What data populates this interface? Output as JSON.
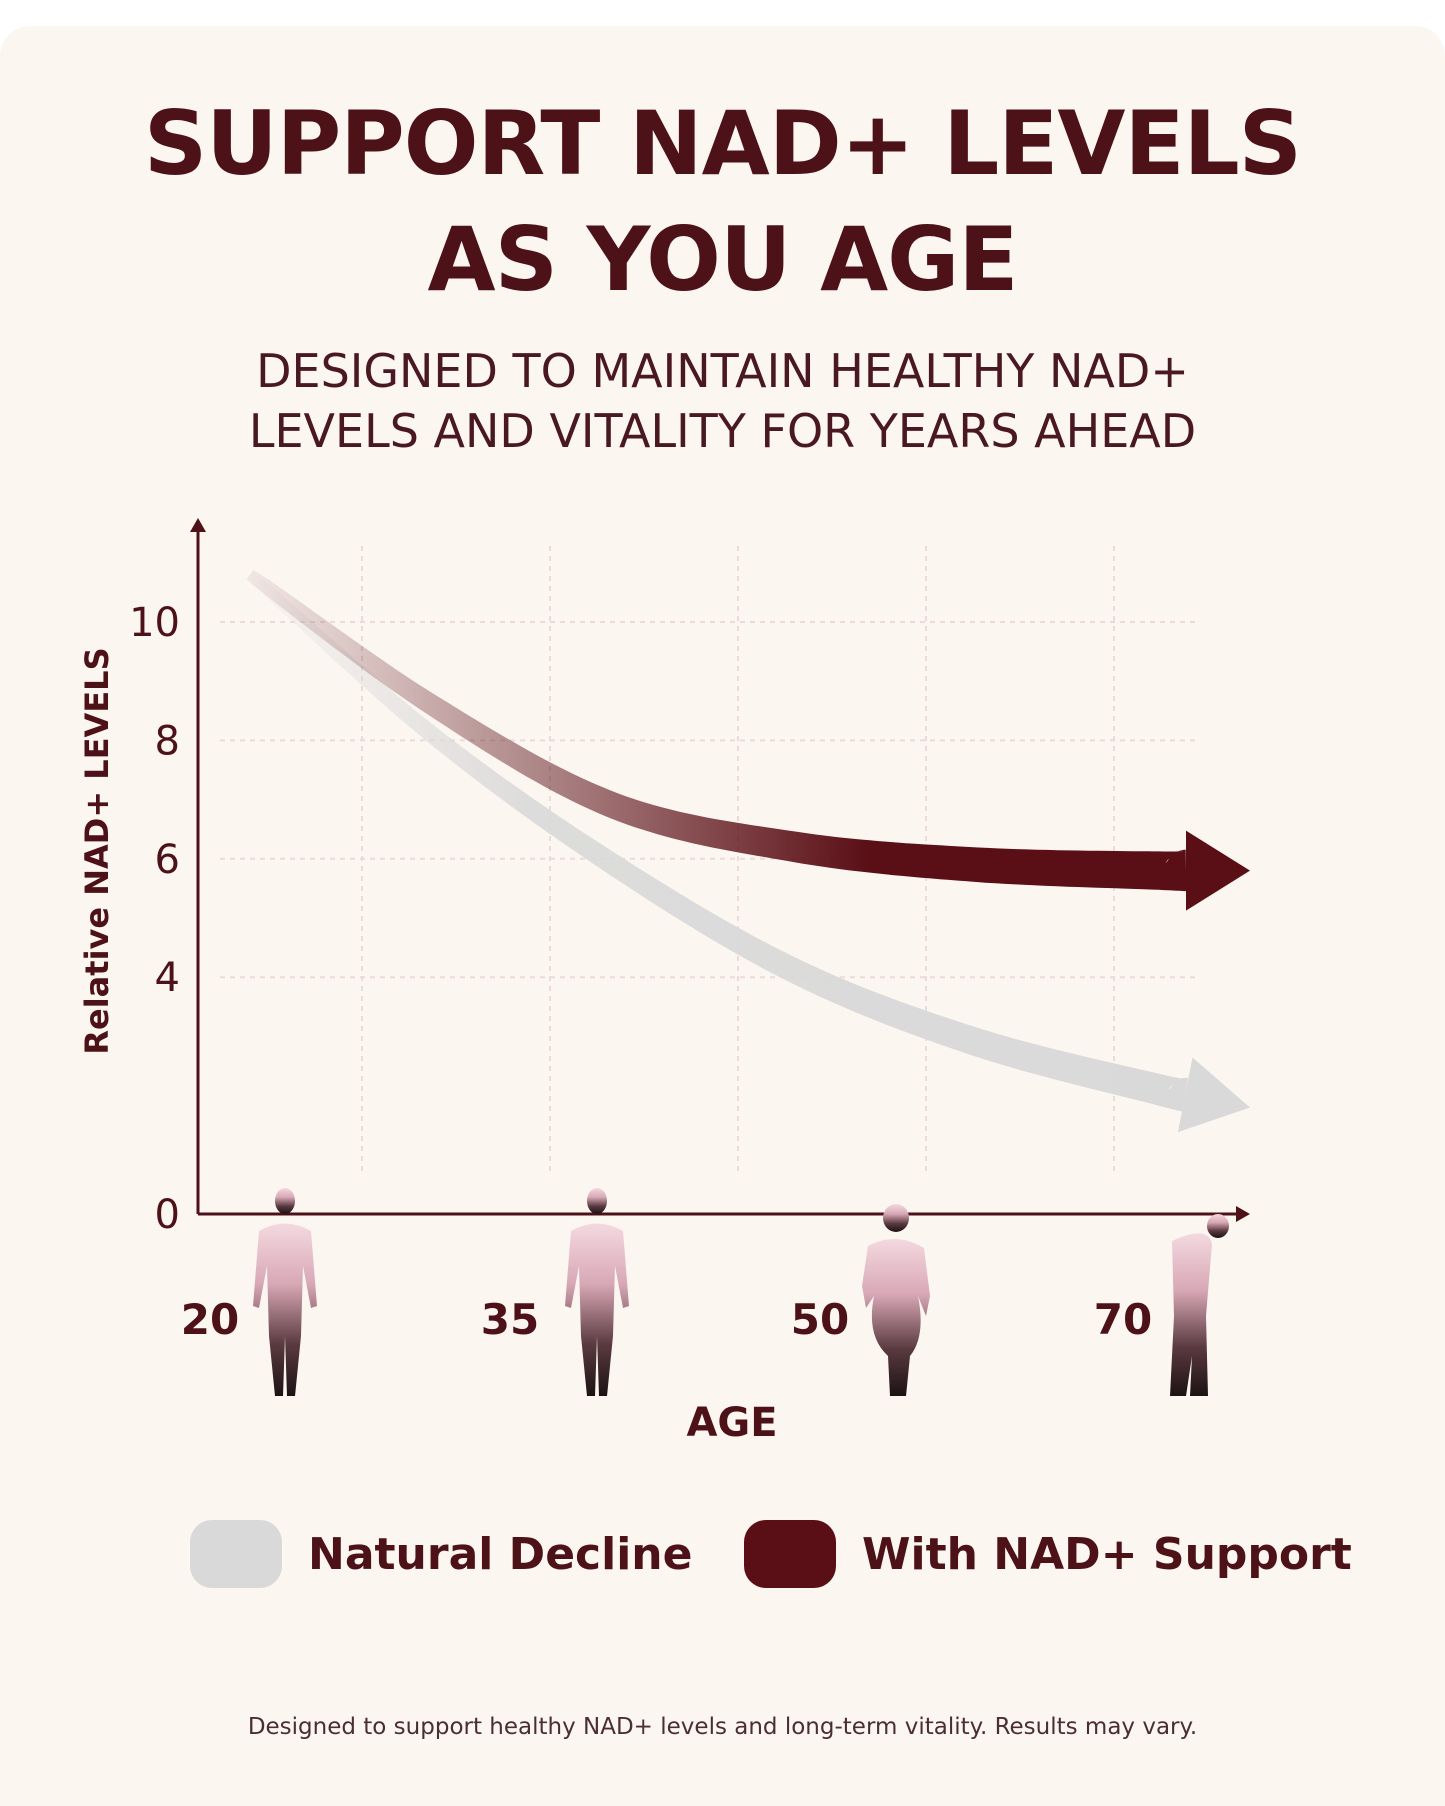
{
  "header": {
    "title_line1": "SUPPORT NAD+ LEVELS",
    "title_line2": "AS YOU AGE",
    "subtitle_line1": "DESIGNED TO MAINTAIN HEALTHY NAD+",
    "subtitle_line2": "LEVELS AND VITALITY FOR YEARS AHEAD"
  },
  "colors": {
    "background": "#fcf6f1",
    "brand": "#4d1118",
    "support": "#5a0f16",
    "natural": "#d9d9d9",
    "axis": "#4d1118"
  },
  "chart_data": {
    "type": "line",
    "xlabel": "AGE",
    "ylabel": "Relative NAD+ LEVELS",
    "x": [
      20,
      35,
      50,
      70
    ],
    "x_tick_labels": [
      "20",
      "35",
      "50",
      "70"
    ],
    "y_tick_labels": [
      "10",
      "8",
      "6",
      "4",
      "0"
    ],
    "ylim": [
      0,
      11
    ],
    "grid": true,
    "series": [
      {
        "name": "Natural Decline",
        "x": [
          20,
          30,
          40,
          50,
          60,
          70,
          75
        ],
        "values": [
          10.8,
          8.1,
          5.9,
          4.1,
          2.9,
          2.1,
          1.8
        ]
      },
      {
        "name": "With NAD+ Support",
        "x": [
          20,
          30,
          40,
          50,
          60,
          70,
          75
        ],
        "values": [
          10.8,
          8.6,
          6.9,
          6.2,
          5.9,
          5.8,
          5.8
        ]
      }
    ],
    "legend_position": "bottom",
    "age_figures": [
      "young-adult-figure-icon",
      "adult-figure-icon",
      "middle-aged-figure-icon",
      "elderly-figure-icon"
    ]
  },
  "legend": {
    "natural_label": "Natural Decline",
    "support_label": "With NAD+ Support"
  },
  "footnote": "Designed to support healthy NAD+ levels and long-term vitality. Results may vary."
}
